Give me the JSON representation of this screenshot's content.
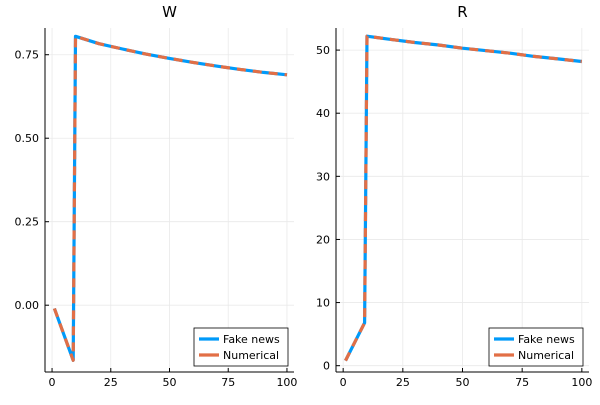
{
  "chart_data": [
    {
      "type": "line",
      "title": "W",
      "xlabel": "",
      "ylabel": "",
      "xlim": [
        -3,
        103
      ],
      "ylim": [
        -0.2,
        0.83
      ],
      "xticks": [
        0,
        25,
        50,
        75,
        100
      ],
      "xtick_labels": [
        "0",
        "25",
        "50",
        "75",
        "100"
      ],
      "yticks": [
        0.0,
        0.25,
        0.5,
        0.75
      ],
      "ytick_labels": [
        "0.00",
        "0.25",
        "0.50",
        "0.75"
      ],
      "grid": true,
      "legend_position": "bottom-right",
      "series": [
        {
          "name": "Fake news",
          "color": "#009AF9",
          "style": "solid",
          "x": [
            1,
            9,
            10,
            20,
            30,
            40,
            50,
            60,
            70,
            80,
            90,
            100
          ],
          "y": [
            -0.01,
            -0.165,
            0.805,
            0.783,
            0.767,
            0.752,
            0.739,
            0.727,
            0.716,
            0.706,
            0.697,
            0.69
          ]
        },
        {
          "name": "Numerical",
          "color": "#E26F46",
          "style": "dashed",
          "x": [
            1,
            9,
            10,
            20,
            30,
            40,
            50,
            60,
            70,
            80,
            90,
            100
          ],
          "y": [
            -0.01,
            -0.165,
            0.805,
            0.783,
            0.767,
            0.752,
            0.739,
            0.727,
            0.716,
            0.706,
            0.697,
            0.69
          ]
        }
      ]
    },
    {
      "type": "line",
      "title": "R",
      "xlabel": "",
      "ylabel": "",
      "xlim": [
        -3,
        103
      ],
      "ylim": [
        -1,
        53.5
      ],
      "xticks": [
        0,
        25,
        50,
        75,
        100
      ],
      "xtick_labels": [
        "0",
        "25",
        "50",
        "75",
        "100"
      ],
      "yticks": [
        0,
        10,
        20,
        30,
        40,
        50
      ],
      "ytick_labels": [
        "0",
        "10",
        "20",
        "30",
        "40",
        "50"
      ],
      "grid": true,
      "legend_position": "bottom-right",
      "series": [
        {
          "name": "Fake news",
          "color": "#009AF9",
          "style": "solid",
          "x": [
            1,
            9,
            10,
            20,
            30,
            40,
            50,
            60,
            70,
            80,
            90,
            100
          ],
          "y": [
            0.8,
            6.8,
            52.2,
            51.7,
            51.2,
            50.8,
            50.3,
            49.9,
            49.5,
            49.0,
            48.6,
            48.2
          ]
        },
        {
          "name": "Numerical",
          "color": "#E26F46",
          "style": "dashed",
          "x": [
            1,
            9,
            10,
            20,
            30,
            40,
            50,
            60,
            70,
            80,
            90,
            100
          ],
          "y": [
            0.8,
            6.8,
            52.2,
            51.7,
            51.2,
            50.8,
            50.3,
            49.9,
            49.5,
            49.0,
            48.6,
            48.2
          ]
        }
      ]
    }
  ]
}
